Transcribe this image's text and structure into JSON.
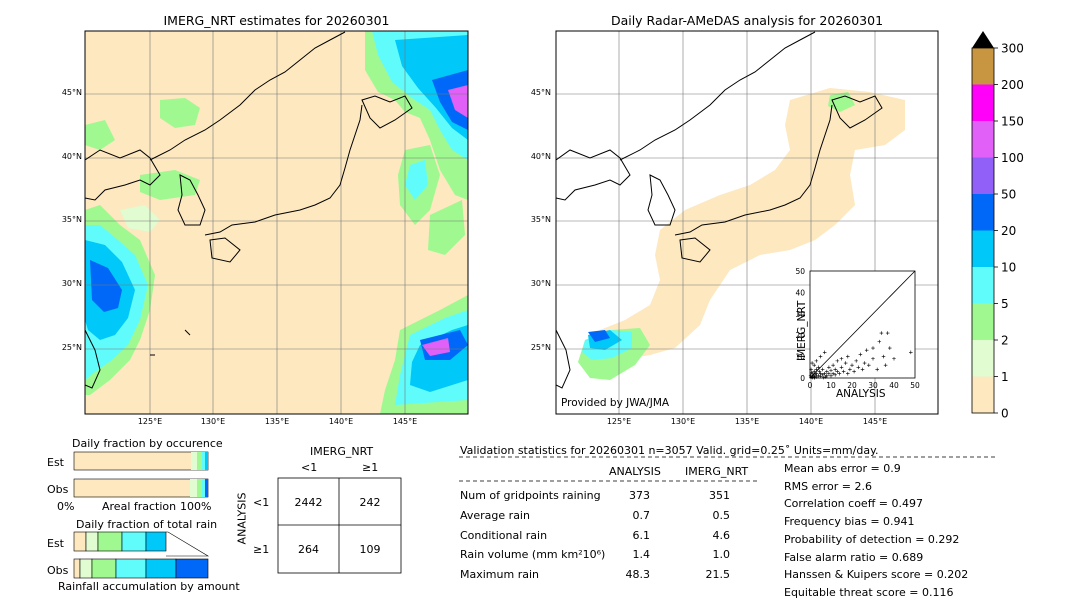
{
  "left_map": {
    "title": "IMERG_NRT estimates for 20260301",
    "lon_ticks": [
      "125°E",
      "130°E",
      "135°E",
      "140°E",
      "145°E"
    ],
    "lat_ticks": [
      "45°N",
      "40°N",
      "35°N",
      "30°N",
      "25°N"
    ]
  },
  "right_map": {
    "title": "Daily Radar-AMeDAS analysis for 20260301",
    "lon_ticks": [
      "125°E",
      "130°E",
      "135°E",
      "140°E",
      "145°E"
    ],
    "lat_ticks": [
      "45°N",
      "40°N",
      "35°N",
      "30°N",
      "25°N"
    ],
    "credit": "Provided by JWA/JMA"
  },
  "colorbar": {
    "labels": [
      "0",
      "1",
      "2",
      "5",
      "10",
      "20",
      "50",
      "100",
      "150",
      "200",
      "300"
    ],
    "colors": [
      "#fde8c0",
      "#e0fcd0",
      "#a0f890",
      "#60fcfc",
      "#00c8f8",
      "#0068f8",
      "#9060f8",
      "#e060f8",
      "#ff00f8",
      "#c89640"
    ]
  },
  "scatter": {
    "xlabel": "ANALYSIS",
    "ylabel": "IMERG_NRT",
    "ticks": [
      "0",
      "10",
      "20",
      "30",
      "40",
      "50"
    ]
  },
  "occurrence": {
    "title": "Daily fraction by occurence",
    "rows": [
      "Est",
      "Obs"
    ],
    "axis_left": "0%",
    "axis_mid": "Areal fraction",
    "axis_right": "100%"
  },
  "total_rain": {
    "title": "Daily fraction of total rain",
    "rows": [
      "Est",
      "Obs"
    ],
    "footer": "Rainfall accumulation by amount"
  },
  "contingency": {
    "col_header": "IMERG_NRT",
    "col_lt": "<1",
    "col_ge": "≥1",
    "row_header": "ANALYSIS",
    "row_lt": "<1",
    "row_ge": "≥1",
    "cells": [
      [
        "2442",
        "242"
      ],
      [
        "264",
        "109"
      ]
    ]
  },
  "validation": {
    "header": "Validation statistics for 20260301  n=3057 Valid. grid=0.25˚ Units=mm/day.",
    "col_analysis": "ANALYSIS",
    "col_imerg": "IMERG_NRT",
    "rows": [
      {
        "label": "Num of gridpoints raining",
        "analysis": "373",
        "imerg": "351"
      },
      {
        "label": "Average rain",
        "analysis": "0.7",
        "imerg": "0.5"
      },
      {
        "label": "Conditional rain",
        "analysis": "6.1",
        "imerg": "4.6"
      },
      {
        "label": "Rain volume (mm km²10⁶)",
        "analysis": "1.4",
        "imerg": "1.0"
      },
      {
        "label": "Maximum rain",
        "analysis": "48.3",
        "imerg": "21.5"
      }
    ],
    "scores": [
      "Mean abs error =    0.9",
      "RMS error =    2.6",
      "Correlation coeff =  0.497",
      "Frequency bias =  0.941",
      "Probability of detection =  0.292",
      "False alarm ratio =  0.689",
      "Hanssen & Kuipers score =  0.202",
      "Equitable threat score =  0.116"
    ]
  },
  "chart_data": {
    "type": "scatter",
    "xlabel": "ANALYSIS",
    "ylabel": "IMERG_NRT",
    "xlim": [
      0,
      50
    ],
    "ylim": [
      0,
      50
    ],
    "points": [
      [
        0.5,
        0.3
      ],
      [
        1,
        0.5
      ],
      [
        1.5,
        1
      ],
      [
        2,
        0.5
      ],
      [
        2.5,
        1.5
      ],
      [
        3,
        2
      ],
      [
        3,
        0.5
      ],
      [
        4,
        1
      ],
      [
        4.5,
        3
      ],
      [
        5,
        2
      ],
      [
        5,
        0.8
      ],
      [
        6,
        1.5
      ],
      [
        6,
        4
      ],
      [
        7,
        2
      ],
      [
        7.5,
        0.5
      ],
      [
        8,
        3
      ],
      [
        8,
        1
      ],
      [
        9,
        5
      ],
      [
        9,
        2
      ],
      [
        10,
        1
      ],
      [
        10,
        3.5
      ],
      [
        11,
        2
      ],
      [
        11,
        6
      ],
      [
        12,
        1.5
      ],
      [
        12,
        4
      ],
      [
        13,
        3
      ],
      [
        13,
        8
      ],
      [
        14,
        2
      ],
      [
        15,
        5
      ],
      [
        15,
        9
      ],
      [
        16,
        3
      ],
      [
        17,
        7
      ],
      [
        18,
        2
      ],
      [
        18,
        10
      ],
      [
        19,
        4
      ],
      [
        20,
        6
      ],
      [
        21,
        3
      ],
      [
        22,
        8
      ],
      [
        23,
        5
      ],
      [
        24,
        11
      ],
      [
        25,
        4
      ],
      [
        26,
        7
      ],
      [
        27,
        13
      ],
      [
        28,
        6
      ],
      [
        30,
        9
      ],
      [
        30,
        14
      ],
      [
        32,
        4
      ],
      [
        33,
        17
      ],
      [
        34,
        21
      ],
      [
        35,
        10
      ],
      [
        36,
        6
      ],
      [
        37,
        21
      ],
      [
        38,
        14
      ],
      [
        40,
        9
      ],
      [
        48,
        12
      ],
      [
        1,
        2
      ],
      [
        2,
        3
      ],
      [
        3,
        4
      ],
      [
        4,
        5
      ],
      [
        2,
        6
      ],
      [
        0.5,
        4
      ],
      [
        1,
        7
      ],
      [
        3,
        8
      ],
      [
        5,
        10
      ],
      [
        7,
        12
      ],
      [
        0.3,
        1
      ],
      [
        1.2,
        0.2
      ],
      [
        2.2,
        0.1
      ],
      [
        6.5,
        0.2
      ],
      [
        0.8,
        2.5
      ]
    ]
  }
}
